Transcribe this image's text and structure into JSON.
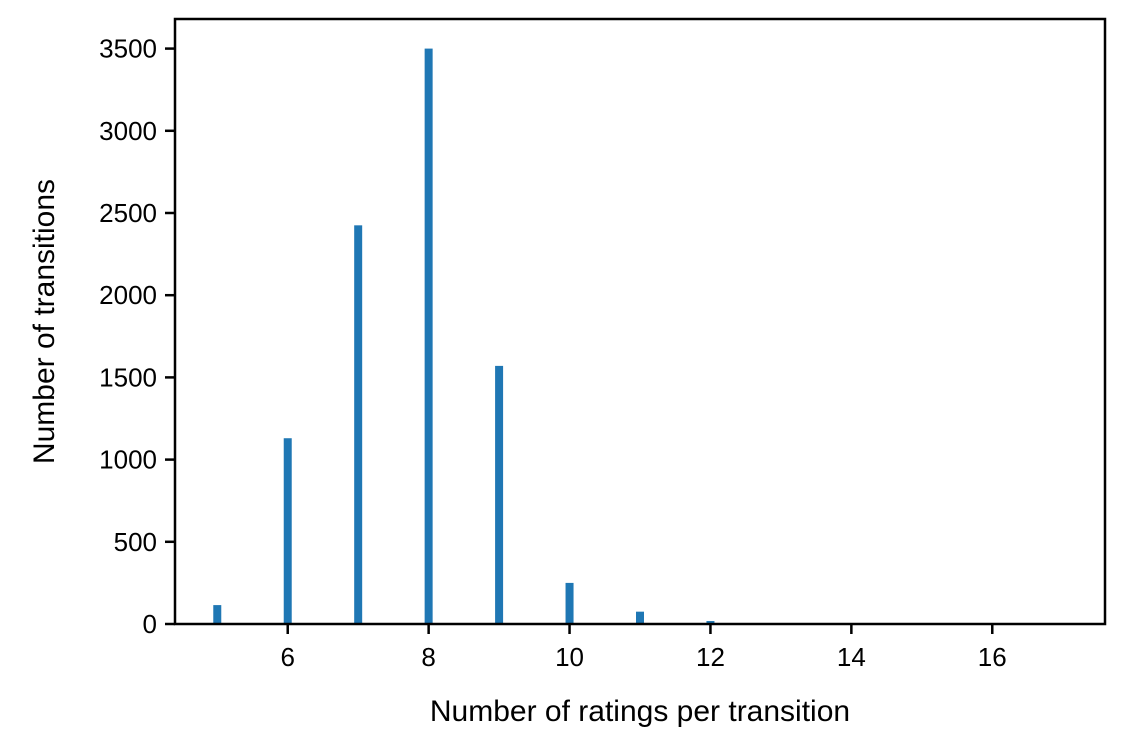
{
  "chart_data": {
    "type": "bar",
    "title": "",
    "xlabel": "Number of ratings per transition",
    "ylabel": "Number of transitions",
    "xlim": [
      4.4,
      17.6
    ],
    "ylim": [
      0,
      3680
    ],
    "x_ticks": [
      6,
      8,
      10,
      12,
      14,
      16
    ],
    "y_ticks": [
      0,
      500,
      1000,
      1500,
      2000,
      2500,
      3000,
      3500
    ],
    "grid": false,
    "legend": "none",
    "bar_color": "#1f77b4",
    "series": [
      {
        "x": [
          5,
          6,
          7,
          8,
          9,
          10,
          11,
          12,
          13
        ],
        "values": [
          115,
          1130,
          2425,
          3500,
          1570,
          250,
          75,
          18,
          6
        ]
      }
    ]
  }
}
